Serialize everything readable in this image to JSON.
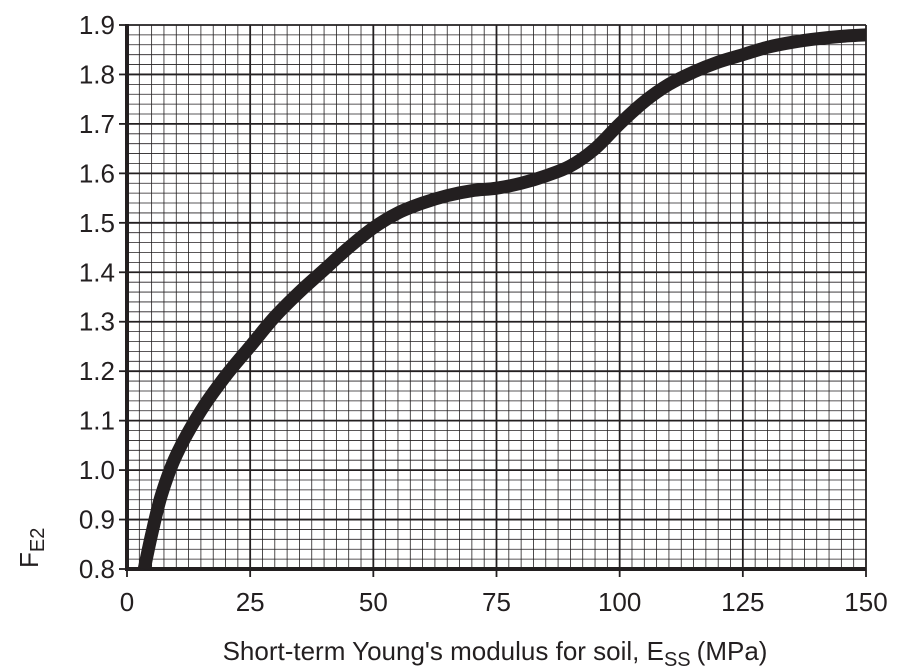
{
  "chart_data": {
    "type": "line",
    "xlabel": "Short-term Young's modulus for soil, E",
    "xlabel_sub": "SS",
    "xlabel_unit": "(MPa)",
    "ylabel": "F",
    "ylabel_sub": "E2",
    "xlim": [
      0,
      150
    ],
    "ylim": [
      0.8,
      1.9
    ],
    "x_ticks": [
      0,
      25,
      50,
      75,
      100,
      125,
      150
    ],
    "x_tick_labels": [
      "0",
      "25",
      "50",
      "75",
      "100",
      "125",
      "150"
    ],
    "y_ticks": [
      0.8,
      0.9,
      1.0,
      1.1,
      1.2,
      1.3,
      1.4,
      1.5,
      1.6,
      1.7,
      1.8,
      1.9
    ],
    "y_tick_labels": [
      "0.8",
      "0.9",
      "1.0",
      "1.1",
      "1.2",
      "1.3",
      "1.4",
      "1.5",
      "1.6",
      "1.7",
      "1.8",
      "1.9"
    ],
    "grid": true,
    "x_minor_step": 2.5,
    "y_minor_step": 0.02,
    "line_color": "#231f20",
    "grid_color": "#231f20",
    "series": [
      {
        "x": [
          3.5,
          5,
          7,
          10,
          15,
          20,
          25,
          30,
          35,
          40,
          45,
          50,
          55,
          60,
          65,
          70,
          75,
          80,
          85,
          90,
          95,
          100,
          105,
          110,
          115,
          120,
          125,
          130,
          135,
          140,
          145,
          150
        ],
        "y": [
          0.8,
          0.87,
          0.95,
          1.03,
          1.12,
          1.19,
          1.25,
          1.31,
          1.36,
          1.405,
          1.45,
          1.49,
          1.52,
          1.54,
          1.555,
          1.565,
          1.57,
          1.58,
          1.595,
          1.615,
          1.65,
          1.7,
          1.745,
          1.78,
          1.805,
          1.825,
          1.84,
          1.855,
          1.865,
          1.872,
          1.877,
          1.88
        ]
      }
    ]
  }
}
